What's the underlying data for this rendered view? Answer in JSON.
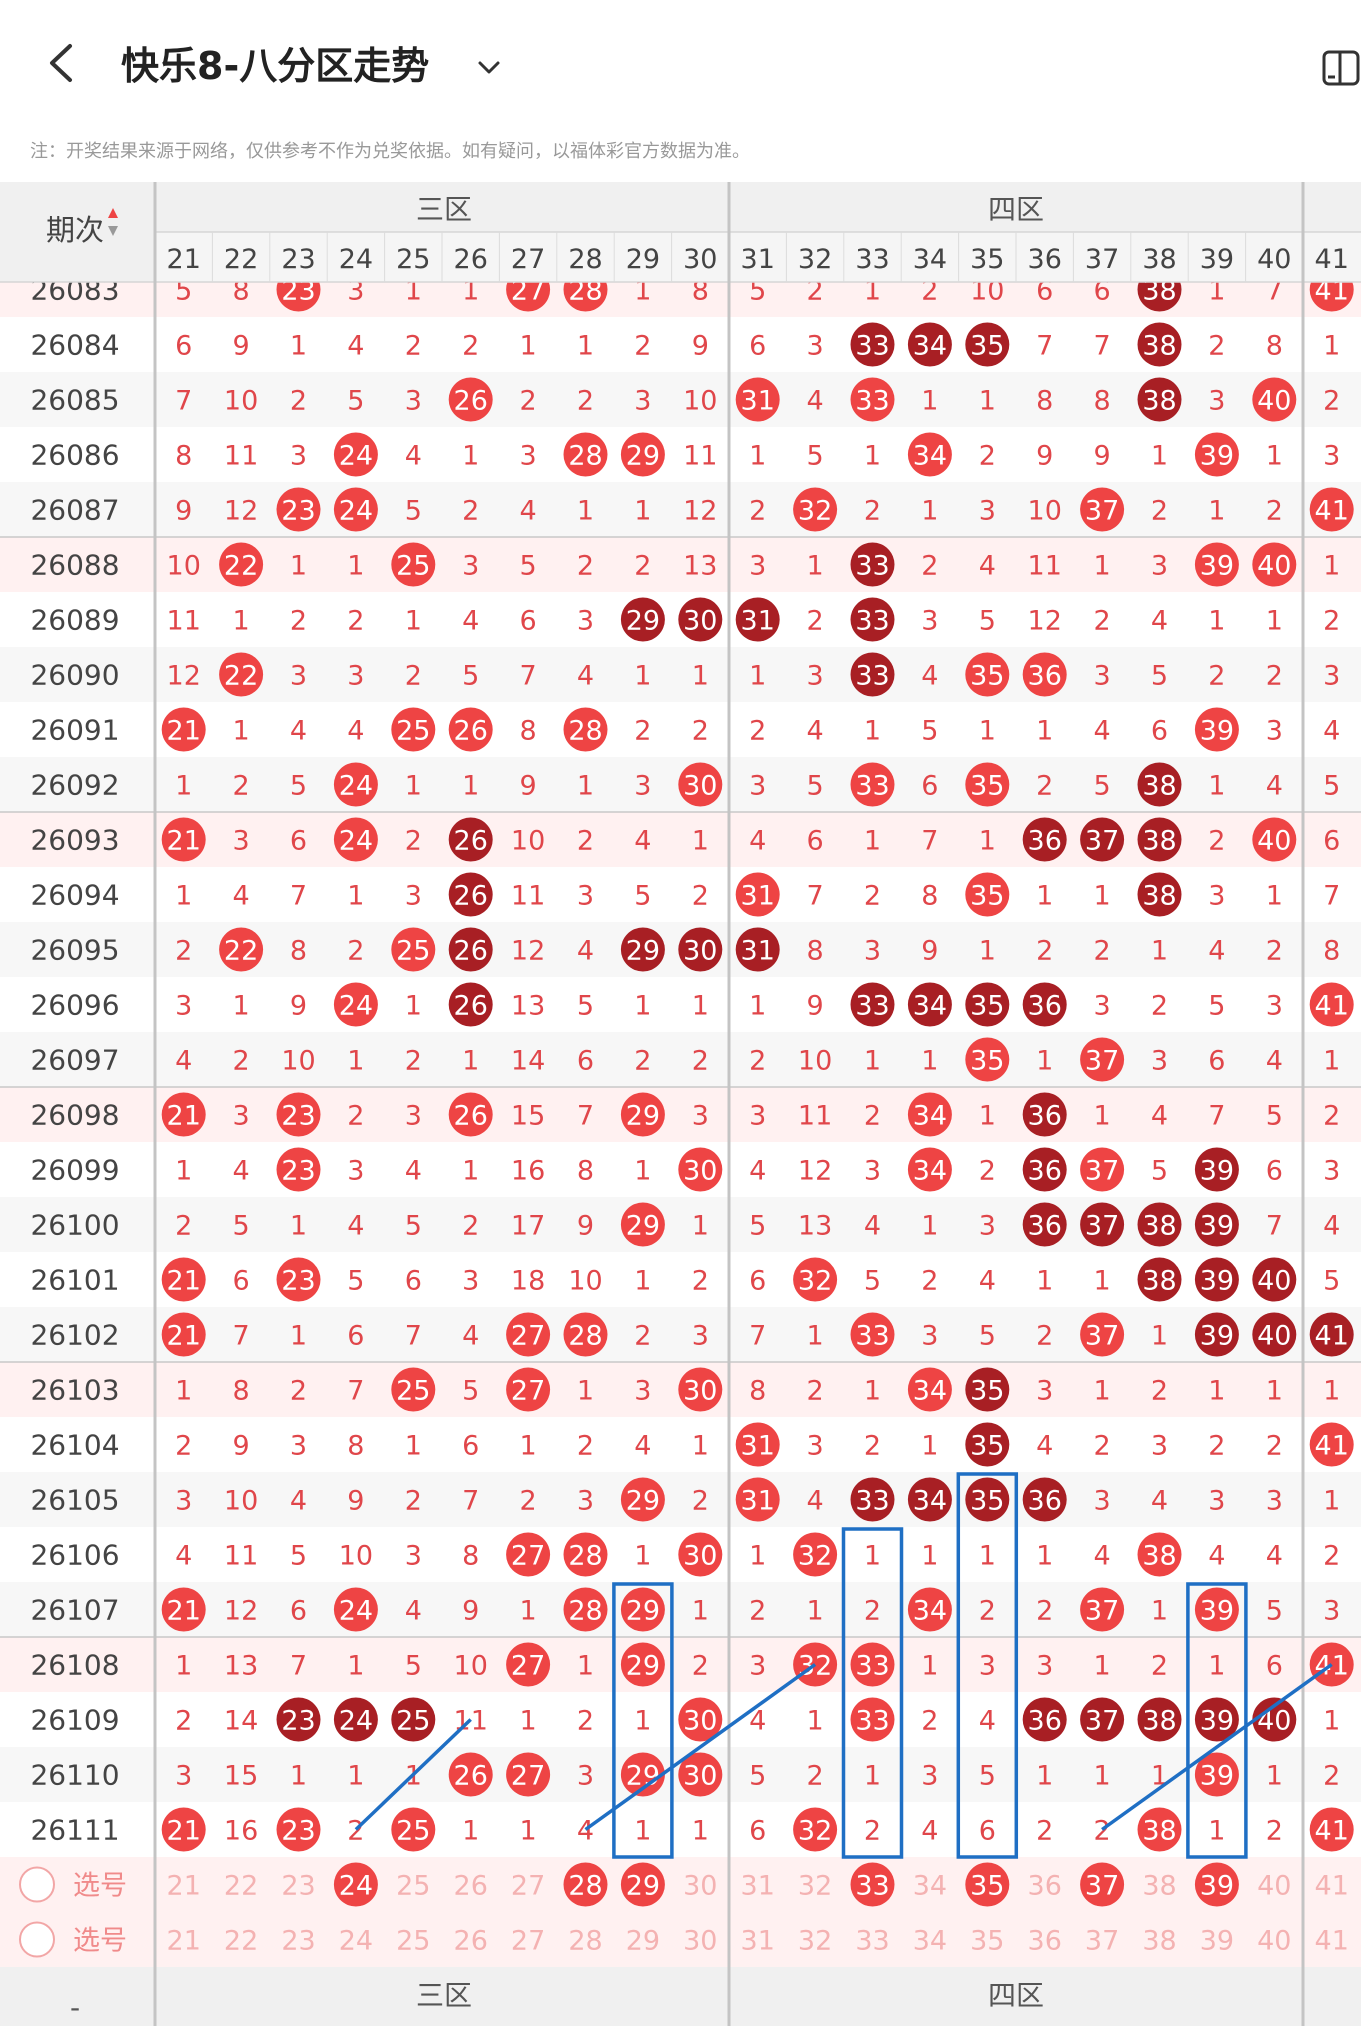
{
  "header": {
    "title": "快乐8-八分区走势",
    "note": "注：开奖结果来源于网络，仅供参考不作为兑奖依据。如有疑问，以福体彩官方数据为准。"
  },
  "table": {
    "period_header": "期次",
    "zone_labels": [
      "三区",
      "四区"
    ],
    "numbers": [
      21,
      22,
      23,
      24,
      25,
      26,
      27,
      28,
      29,
      30,
      31,
      32,
      33,
      34,
      35,
      36,
      37,
      38,
      39,
      40,
      41
    ],
    "rows": [
      {
        "period": "26083",
        "cells": [
          5,
          8,
          "H",
          3,
          1,
          1,
          "H",
          "H",
          1,
          8,
          5,
          2,
          1,
          2,
          10,
          6,
          6,
          "D",
          1,
          7,
          "H"
        ]
      },
      {
        "period": "26084",
        "cells": [
          6,
          9,
          1,
          4,
          2,
          2,
          1,
          1,
          2,
          9,
          6,
          3,
          "D",
          "D",
          "D",
          7,
          7,
          "D",
          2,
          8,
          1
        ]
      },
      {
        "period": "26085",
        "cells": [
          7,
          10,
          2,
          5,
          3,
          "H",
          2,
          2,
          3,
          10,
          "H",
          4,
          "H",
          1,
          1,
          8,
          8,
          "D",
          3,
          "H",
          2
        ]
      },
      {
        "period": "26086",
        "cells": [
          8,
          11,
          3,
          "H",
          4,
          1,
          3,
          "H",
          "H",
          11,
          1,
          5,
          1,
          "H",
          2,
          9,
          9,
          1,
          "H",
          1,
          3
        ]
      },
      {
        "period": "26087",
        "cells": [
          9,
          12,
          "H",
          "H",
          5,
          2,
          4,
          1,
          1,
          12,
          2,
          "H",
          2,
          1,
          3,
          10,
          "H",
          2,
          1,
          2,
          "H"
        ]
      },
      {
        "period": "26088",
        "cells": [
          10,
          "H",
          1,
          1,
          "H",
          3,
          5,
          2,
          2,
          13,
          3,
          1,
          "D",
          2,
          4,
          11,
          1,
          3,
          "H",
          "H",
          1
        ]
      },
      {
        "period": "26089",
        "cells": [
          11,
          1,
          2,
          2,
          1,
          4,
          6,
          3,
          "D",
          "D",
          "D",
          2,
          "D",
          3,
          5,
          12,
          2,
          4,
          1,
          1,
          2
        ]
      },
      {
        "period": "26090",
        "cells": [
          12,
          "H",
          3,
          3,
          2,
          5,
          7,
          4,
          1,
          1,
          1,
          3,
          "D",
          4,
          "H",
          "H",
          3,
          5,
          2,
          2,
          3
        ]
      },
      {
        "period": "26091",
        "cells": [
          "H",
          1,
          4,
          4,
          "H",
          "H",
          8,
          "H",
          2,
          2,
          2,
          4,
          1,
          5,
          1,
          1,
          4,
          6,
          "H",
          3,
          4
        ]
      },
      {
        "period": "26092",
        "cells": [
          1,
          2,
          5,
          "H",
          1,
          1,
          9,
          1,
          3,
          "H",
          3,
          5,
          "H",
          6,
          "H",
          2,
          5,
          "D",
          1,
          4,
          5
        ]
      },
      {
        "period": "26093",
        "cells": [
          "H",
          3,
          6,
          "H",
          2,
          "D",
          10,
          2,
          4,
          1,
          4,
          6,
          1,
          7,
          1,
          "D",
          "D",
          "D",
          2,
          "H",
          6
        ]
      },
      {
        "period": "26094",
        "cells": [
          1,
          4,
          7,
          1,
          3,
          "D",
          11,
          3,
          5,
          2,
          "H",
          7,
          2,
          8,
          "H",
          1,
          1,
          "D",
          3,
          1,
          7
        ]
      },
      {
        "period": "26095",
        "cells": [
          2,
          "H",
          8,
          2,
          "H",
          "D",
          12,
          4,
          "D",
          "D",
          "D",
          8,
          3,
          9,
          1,
          2,
          2,
          1,
          4,
          2,
          8
        ]
      },
      {
        "period": "26096",
        "cells": [
          3,
          1,
          9,
          "H",
          1,
          "D",
          13,
          5,
          1,
          1,
          1,
          9,
          "D",
          "D",
          "D",
          "D",
          3,
          2,
          5,
          3,
          "H"
        ]
      },
      {
        "period": "26097",
        "cells": [
          4,
          2,
          10,
          1,
          2,
          1,
          14,
          6,
          2,
          2,
          2,
          10,
          1,
          1,
          "H",
          1,
          "H",
          3,
          6,
          4,
          1
        ]
      },
      {
        "period": "26098",
        "cells": [
          "H",
          3,
          "H",
          2,
          3,
          "H",
          15,
          7,
          "H",
          3,
          3,
          11,
          2,
          "H",
          1,
          "D",
          1,
          4,
          7,
          5,
          2
        ]
      },
      {
        "period": "26099",
        "cells": [
          1,
          4,
          "H",
          3,
          4,
          1,
          16,
          8,
          1,
          "H",
          4,
          12,
          3,
          "H",
          2,
          "D",
          "H",
          5,
          "D",
          6,
          3
        ]
      },
      {
        "period": "26100",
        "cells": [
          2,
          5,
          1,
          4,
          5,
          2,
          17,
          9,
          "H",
          1,
          5,
          13,
          4,
          1,
          3,
          "D",
          "D",
          "D",
          "D",
          7,
          4
        ]
      },
      {
        "period": "26101",
        "cells": [
          "H",
          6,
          "H",
          5,
          6,
          3,
          18,
          10,
          1,
          2,
          6,
          "H",
          5,
          2,
          4,
          1,
          1,
          "D",
          "D",
          "D",
          5
        ]
      },
      {
        "period": "26102",
        "cells": [
          "H",
          7,
          1,
          6,
          7,
          4,
          "H",
          "H",
          2,
          3,
          7,
          1,
          "H",
          3,
          5,
          2,
          "H",
          1,
          "D",
          "D",
          "D"
        ]
      },
      {
        "period": "26103",
        "cells": [
          1,
          8,
          2,
          7,
          "H",
          5,
          "H",
          1,
          3,
          "H",
          8,
          2,
          1,
          "H",
          "D",
          3,
          1,
          2,
          1,
          1,
          1
        ]
      },
      {
        "period": "26104",
        "cells": [
          2,
          9,
          3,
          8,
          1,
          6,
          1,
          2,
          4,
          1,
          "H",
          3,
          2,
          1,
          "D",
          4,
          2,
          3,
          2,
          2,
          "H"
        ]
      },
      {
        "period": "26105",
        "cells": [
          3,
          10,
          4,
          9,
          2,
          7,
          2,
          3,
          "H",
          2,
          "H",
          4,
          "D",
          "D",
          "D",
          "D",
          3,
          4,
          3,
          3,
          1
        ]
      },
      {
        "period": "26106",
        "cells": [
          4,
          11,
          5,
          10,
          3,
          8,
          "H",
          "H",
          1,
          "H",
          1,
          "H",
          1,
          1,
          1,
          1,
          4,
          "H",
          4,
          4,
          2
        ]
      },
      {
        "period": "26107",
        "cells": [
          "H",
          12,
          6,
          "H",
          4,
          9,
          1,
          "H",
          "H",
          1,
          2,
          1,
          2,
          "H",
          2,
          2,
          "H",
          1,
          "H",
          5,
          3
        ]
      },
      {
        "period": "26108",
        "cells": [
          1,
          13,
          7,
          1,
          5,
          10,
          "H",
          1,
          "H",
          2,
          3,
          "H",
          "H",
          1,
          3,
          3,
          1,
          2,
          1,
          6,
          "H"
        ]
      },
      {
        "period": "26109",
        "cells": [
          2,
          14,
          "D",
          "D",
          "D",
          11,
          1,
          2,
          1,
          "H",
          4,
          1,
          "H",
          2,
          4,
          "D",
          "D",
          "D",
          "D",
          "D",
          1
        ]
      },
      {
        "period": "26110",
        "cells": [
          3,
          15,
          1,
          1,
          1,
          "H",
          "H",
          3,
          "H",
          "H",
          5,
          2,
          1,
          3,
          5,
          1,
          1,
          1,
          "H",
          1,
          2
        ]
      },
      {
        "period": "26111",
        "cells": [
          "H",
          16,
          "H",
          2,
          "H",
          1,
          1,
          4,
          1,
          1,
          6,
          "H",
          2,
          4,
          6,
          2,
          2,
          "H",
          1,
          2,
          "H"
        ]
      }
    ],
    "select_rows": [
      {
        "label": "选号",
        "selected": [
          24,
          28,
          29,
          33,
          35,
          37,
          39
        ]
      },
      {
        "label": "选号",
        "selected": []
      }
    ],
    "footer_label": "-"
  },
  "colors": {
    "hit": "#ee4444",
    "hit_dark": "#a81f24",
    "number_text": "#e0464a",
    "stripe": "#fff1f1",
    "header_bg": "#f0f0f0",
    "annotation": "#1f6fc4"
  }
}
